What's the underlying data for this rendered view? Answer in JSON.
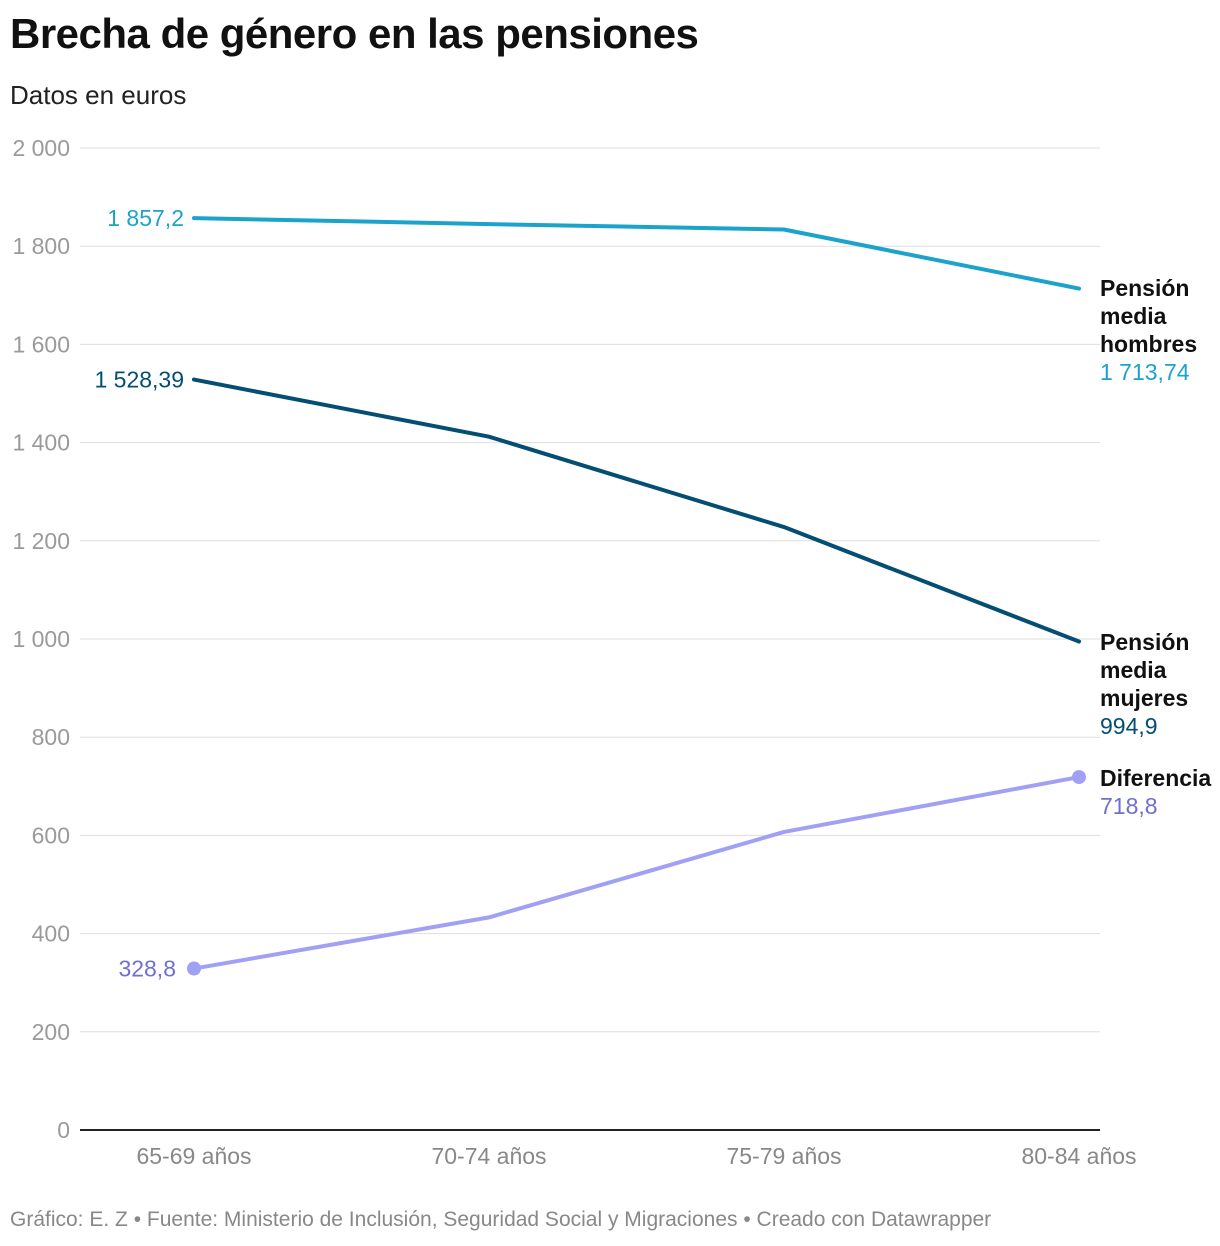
{
  "title": "Brecha de género en las pensiones",
  "subtitle": "Datos en euros",
  "footer": "Gráfico: E. Z • Fuente: Ministerio de Inclusión, Seguridad Social y Migraciones • Creado con Datawrapper",
  "chart_data": {
    "type": "line",
    "categories": [
      "65-69 años",
      "70-74 años",
      "75-79 años",
      "80-84 años"
    ],
    "ylim": [
      0,
      2000
    ],
    "yticks": [
      {
        "value": 0,
        "label": "0"
      },
      {
        "value": 200,
        "label": "200"
      },
      {
        "value": 400,
        "label": "400"
      },
      {
        "value": 600,
        "label": "600"
      },
      {
        "value": 800,
        "label": "800"
      },
      {
        "value": 1000,
        "label": "1 000"
      },
      {
        "value": 1200,
        "label": "1 200"
      },
      {
        "value": 1400,
        "label": "1 400"
      },
      {
        "value": 1600,
        "label": "1 600"
      },
      {
        "value": 1800,
        "label": "1 800"
      },
      {
        "value": 2000,
        "label": "2 000"
      }
    ],
    "grid": true,
    "series": [
      {
        "name": "Pensión media hombres",
        "name_lines": [
          "Pensión",
          "media",
          "hombres"
        ],
        "color": "#1ba3cc",
        "values": [
          1857.2,
          1845,
          1834,
          1713.74
        ],
        "start_label": "1 857,2",
        "end_label": "1 713,74",
        "markers": false
      },
      {
        "name": "Pensión media mujeres",
        "name_lines": [
          "Pensión",
          "media",
          "mujeres"
        ],
        "color": "#054e73",
        "values": [
          1528.39,
          1412,
          1228,
          994.9
        ],
        "start_label": "1 528,39",
        "end_label": "994,9",
        "markers": false
      },
      {
        "name": "Diferencia",
        "name_lines": [
          "Diferencia"
        ],
        "color": "#a0a0f5",
        "label_color": "#6f6fce",
        "values": [
          328.8,
          433,
          607,
          718.8
        ],
        "start_label": "328,8",
        "end_label": "718,8",
        "markers": true
      }
    ]
  }
}
